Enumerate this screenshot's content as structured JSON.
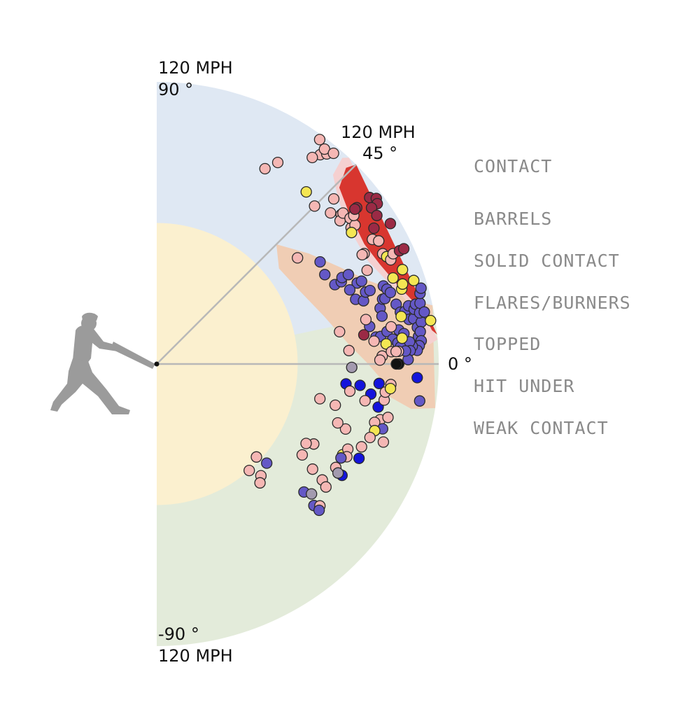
{
  "chart_data": {
    "type": "scatter",
    "title": "",
    "labels": {
      "top_speed": "120 MPH",
      "top_angle": "90 °",
      "diag_speed": "120 MPH",
      "diag_angle": "45 °",
      "zero_angle": "0 °",
      "bottom_angle": "-90 °",
      "bottom_speed": "120 MPH"
    },
    "legend": [
      {
        "label": "CONTACT",
        "color": "#8a8a8a"
      },
      {
        "label": "BARRELS",
        "color": "#d8362f"
      },
      {
        "label": "SOLID CONTACT",
        "color": "#f2c9c9"
      },
      {
        "label": "FLARES/BURNERS",
        "color": "#f0cdb4"
      },
      {
        "label": "TOPPED",
        "color": "#e3ebda"
      },
      {
        "label": "HIT UNDER",
        "color": "#dfe8f3"
      },
      {
        "label": "WEAK CONTACT",
        "color": "#fbf0cf"
      }
    ],
    "axes": {
      "angle_range_deg": [
        -90,
        90
      ],
      "speed_range_mph": [
        0,
        120
      ]
    },
    "colors": {
      "weak": "#fbf0cf",
      "under": "#dfe8f3",
      "topped": "#e3ebda",
      "flare": "#f0cdb4",
      "solid": "#f5d0d0",
      "barrel": "#d8362f",
      "guide": "#b8b8b8"
    },
    "point_colors": {
      "p": "#f5b7b4",
      "u": "#6458c6",
      "y": "#f4e653",
      "d": "#9b2a45",
      "b": "#1414dc",
      "g": "#a39aaf",
      "k": "#111111"
    },
    "points": [
      [
        "p",
        95,
        61
      ],
      [
        "p",
        100,
        59
      ],
      [
        "p",
        113,
        52
      ],
      [
        "p",
        115,
        51
      ],
      [
        "p",
        116,
        52
      ],
      [
        "p",
        118,
        54
      ],
      [
        "p",
        117,
        50
      ],
      [
        "p",
        110,
        53
      ],
      [
        "y",
        97,
        49
      ],
      [
        "p",
        95,
        45
      ],
      [
        "p",
        101,
        39
      ],
      [
        "p",
        101,
        35
      ],
      [
        "p",
        99,
        38
      ],
      [
        "p",
        103,
        43
      ],
      [
        "p",
        98,
        41
      ],
      [
        "p",
        102,
        39
      ],
      [
        "p",
        103,
        37
      ],
      [
        "p",
        103,
        35
      ],
      [
        "p",
        105,
        37
      ],
      [
        "y",
        100,
        34
      ],
      [
        "p",
        106,
        30
      ],
      [
        "p",
        108,
        29
      ],
      [
        "p",
        107,
        26
      ],
      [
        "y",
        108,
        25
      ],
      [
        "p",
        109,
        24
      ],
      [
        "p",
        111,
        25
      ],
      [
        "p",
        100,
        28
      ],
      [
        "p",
        98,
        24
      ],
      [
        "p",
        99,
        28
      ],
      [
        "u",
        82,
        32
      ],
      [
        "p",
        75,
        37
      ],
      [
        "u",
        81,
        28
      ],
      [
        "u",
        83,
        24
      ],
      [
        "u",
        86,
        24
      ],
      [
        "u",
        87,
        25
      ],
      [
        "u",
        90,
        25
      ],
      [
        "u",
        92,
        22
      ],
      [
        "u",
        94,
        22
      ],
      [
        "u",
        88,
        21
      ],
      [
        "u",
        89,
        18
      ],
      [
        "u",
        92,
        17
      ],
      [
        "u",
        94,
        19
      ],
      [
        "u",
        96,
        19
      ],
      [
        "u",
        98,
        14
      ],
      [
        "u",
        98,
        12
      ],
      [
        "u",
        100,
        16
      ],
      [
        "u",
        101,
        16
      ],
      [
        "u",
        102,
        19
      ],
      [
        "u",
        103,
        18
      ],
      [
        "u",
        104,
        17
      ],
      [
        "u",
        105,
        14
      ],
      [
        "u",
        106,
        12
      ],
      [
        "u",
        108,
        12
      ],
      [
        "u",
        109,
        10
      ],
      [
        "u",
        110,
        13
      ],
      [
        "u",
        111,
        10
      ],
      [
        "u",
        112,
        12
      ],
      [
        "u",
        112,
        8
      ],
      [
        "u",
        112,
        6
      ],
      [
        "u",
        113,
        13
      ],
      [
        "u",
        114,
        9
      ],
      [
        "u",
        114,
        11
      ],
      [
        "u",
        115,
        13
      ],
      [
        "u",
        116,
        15
      ],
      [
        "u",
        117,
        16
      ],
      [
        "u",
        116,
        11
      ],
      [
        "u",
        113,
        7
      ],
      [
        "u",
        113,
        5
      ],
      [
        "u",
        112,
        4
      ],
      [
        "u",
        111,
        3
      ],
      [
        "u",
        109,
        4
      ],
      [
        "u",
        108,
        5
      ],
      [
        "u",
        108,
        3
      ],
      [
        "u",
        107,
        1
      ],
      [
        "u",
        92,
        10
      ],
      [
        "u",
        94,
        7
      ],
      [
        "u",
        96,
        7
      ],
      [
        "u",
        99,
        8
      ],
      [
        "u",
        101,
        6
      ],
      [
        "u",
        103,
        5
      ],
      [
        "u",
        104,
        8
      ],
      [
        "u",
        106,
        7
      ],
      [
        "u",
        104,
        4
      ],
      [
        "u",
        106,
        3
      ],
      [
        "y",
        107,
        20
      ],
      [
        "y",
        109,
        17
      ],
      [
        "y",
        110,
        18
      ],
      [
        "y",
        112,
        21
      ],
      [
        "y",
        118,
        9
      ],
      [
        "y",
        98,
        5
      ],
      [
        "y",
        105,
        6
      ],
      [
        "y",
        106,
        11
      ],
      [
        "y",
        115,
        18
      ],
      [
        "d",
        115,
        38
      ],
      [
        "d",
        117,
        37
      ],
      [
        "d",
        116,
        36
      ],
      [
        "d",
        113,
        36
      ],
      [
        "d",
        113,
        34
      ],
      [
        "d",
        116,
        31
      ],
      [
        "d",
        109,
        32
      ],
      [
        "d",
        114,
        25
      ],
      [
        "d",
        116,
        25
      ],
      [
        "d",
        89,
        8
      ],
      [
        "d",
        108,
        38
      ],
      [
        "d",
        107,
        38
      ],
      [
        "k",
        103,
        0
      ],
      [
        "k",
        102,
        0
      ],
      [
        "p",
        91,
        12
      ],
      [
        "p",
        79,
        10
      ],
      [
        "p",
        101,
        9
      ],
      [
        "p",
        93,
        6
      ],
      [
        "p",
        103,
        3
      ],
      [
        "p",
        96,
        2
      ],
      [
        "p",
        95,
        1
      ],
      [
        "p",
        100,
        3
      ],
      [
        "p",
        102,
        3
      ],
      [
        "b",
        92,
        -8
      ],
      [
        "b",
        81,
        -6
      ],
      [
        "b",
        87,
        -6
      ],
      [
        "p",
        90,
        -10
      ],
      [
        "b",
        96,
        -11
      ],
      [
        "p",
        98,
        -9
      ],
      [
        "p",
        98,
        -14
      ],
      [
        "p",
        101,
        -13
      ],
      [
        "p",
        96,
        -15
      ],
      [
        "u",
        100,
        -16
      ],
      [
        "y",
        97,
        -17
      ],
      [
        "p",
        85,
        -19
      ],
      [
        "p",
        81,
        -18
      ],
      [
        "p",
        78,
        -13
      ],
      [
        "p",
        83,
        -8
      ],
      [
        "p",
        71,
        -12
      ],
      [
        "p",
        96,
        -19
      ],
      [
        "p",
        102,
        -19
      ],
      [
        "y",
        88,
        -26
      ],
      [
        "p",
        94,
        -22
      ],
      [
        "p",
        89,
        -24
      ],
      [
        "p",
        90,
        -26
      ],
      [
        "b",
        95,
        -25
      ],
      [
        "u",
        88,
        -27
      ],
      [
        "p",
        88,
        -30
      ],
      [
        "b",
        92,
        -31
      ],
      [
        "g",
        90,
        -31
      ],
      [
        "p",
        75,
        -27
      ],
      [
        "p",
        72,
        -28
      ],
      [
        "p",
        73,
        -32
      ],
      [
        "p",
        80,
        -34
      ],
      [
        "p",
        86,
        -35
      ],
      [
        "p",
        89,
        -36
      ],
      [
        "u",
        83,
        -41
      ],
      [
        "g",
        86,
        -40
      ],
      [
        "u",
        90,
        -42
      ],
      [
        "p",
        92,
        -41
      ],
      [
        "u",
        93,
        -42
      ],
      [
        "u",
        63,
        -42
      ],
      [
        "p",
        58,
        -43
      ],
      [
        "p",
        65,
        -47
      ],
      [
        "p",
        60,
        -49
      ],
      [
        "p",
        67,
        -49
      ],
      [
        "g",
        83,
        -1
      ],
      [
        "p",
        82,
        4
      ],
      [
        "b",
        95,
        -5
      ],
      [
        "u",
        113,
        -8
      ],
      [
        "p",
        98,
        -7
      ],
      [
        "p",
        100,
        -5
      ],
      [
        "y",
        100,
        -6
      ],
      [
        "b",
        111,
        -3
      ]
    ]
  }
}
